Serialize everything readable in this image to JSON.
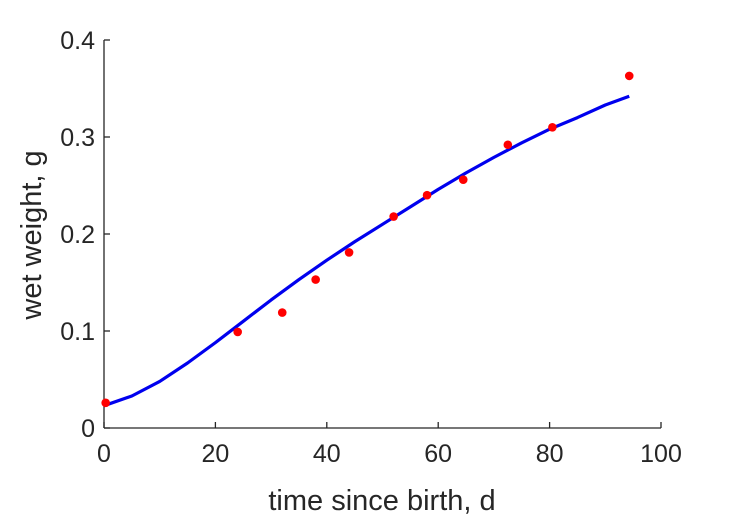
{
  "chart_data": {
    "type": "scatter",
    "title": "",
    "xlabel": "time since birth, d",
    "ylabel": "wet weight, g",
    "xlim": [
      0,
      100
    ],
    "ylim": [
      0,
      0.4
    ],
    "xticks": [
      0,
      20,
      40,
      60,
      80,
      100
    ],
    "yticks": [
      0,
      0.1,
      0.2,
      0.3,
      0.4
    ],
    "xtick_labels": [
      "0",
      "20",
      "40",
      "60",
      "80",
      "100"
    ],
    "ytick_labels": [
      "0",
      "0.1",
      "0.2",
      "0.3",
      "0.4"
    ],
    "grid": false,
    "legend": "none",
    "series": [
      {
        "kind": "scatter",
        "color": "#ff0000",
        "x": [
          0.3,
          24,
          32,
          38,
          44,
          52,
          58,
          64.5,
          72.5,
          80.5,
          94.3
        ],
        "y": [
          0.026,
          0.099,
          0.119,
          0.153,
          0.181,
          0.218,
          0.24,
          0.256,
          0.292,
          0.31,
          0.363
        ]
      },
      {
        "kind": "line",
        "color": "#0000ee",
        "x": [
          0,
          5,
          10,
          15,
          20,
          25,
          30,
          35,
          40,
          45,
          50,
          55,
          60,
          65,
          70,
          75,
          80,
          85,
          90,
          94.3
        ],
        "y": [
          0.023,
          0.033,
          0.048,
          0.067,
          0.088,
          0.11,
          0.132,
          0.153,
          0.173,
          0.192,
          0.21,
          0.228,
          0.246,
          0.263,
          0.279,
          0.294,
          0.308,
          0.32,
          0.333,
          0.342
        ]
      }
    ]
  }
}
